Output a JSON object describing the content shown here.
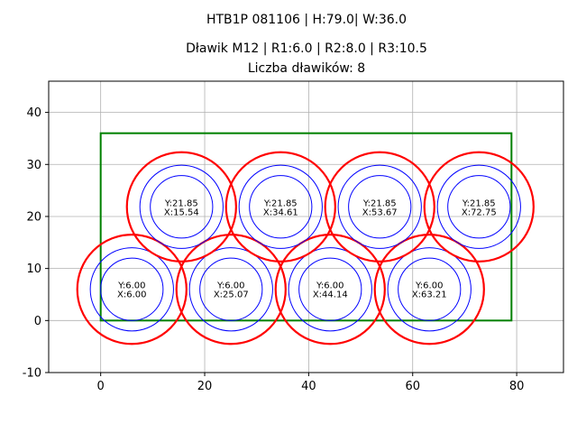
{
  "chart_data": {
    "type": "scatter",
    "title_lines": [
      "HTB1P 081106 | H:79.0| W:36.0",
      "Dławik M12 | R1:6.0 | R2:8.0 | R3:10.5",
      "Liczba dławików: 8"
    ],
    "xlim": [
      -10,
      89
    ],
    "ylim": [
      -10,
      46
    ],
    "x_ticks": [
      0,
      20,
      40,
      60,
      80
    ],
    "y_ticks": [
      -10,
      0,
      10,
      20,
      30,
      40
    ],
    "grid": true,
    "box": {
      "x": [
        0,
        79
      ],
      "y": [
        0,
        36
      ],
      "color": "#008000"
    },
    "radii": {
      "r1": 6.0,
      "r2": 8.0,
      "r3": 10.5
    },
    "colors": {
      "inner": "#0000ff",
      "outer": "#ff0000"
    },
    "points": [
      {
        "x": 6.0,
        "y": 6.0,
        "label_y": "Y:6.00",
        "label_x": "X:6.00"
      },
      {
        "x": 25.07,
        "y": 6.0,
        "label_y": "Y:6.00",
        "label_x": "X:25.07"
      },
      {
        "x": 44.14,
        "y": 6.0,
        "label_y": "Y:6.00",
        "label_x": "X:44.14"
      },
      {
        "x": 63.21,
        "y": 6.0,
        "label_y": "Y:6.00",
        "label_x": "X:63.21"
      },
      {
        "x": 15.54,
        "y": 21.85,
        "label_y": "Y:21.85",
        "label_x": "X:15.54"
      },
      {
        "x": 34.61,
        "y": 21.85,
        "label_y": "Y:21.85",
        "label_x": "X:34.61"
      },
      {
        "x": 53.67,
        "y": 21.85,
        "label_y": "Y:21.85",
        "label_x": "X:53.67"
      },
      {
        "x": 72.75,
        "y": 21.85,
        "label_y": "Y:21.85",
        "label_x": "X:72.75"
      }
    ]
  }
}
